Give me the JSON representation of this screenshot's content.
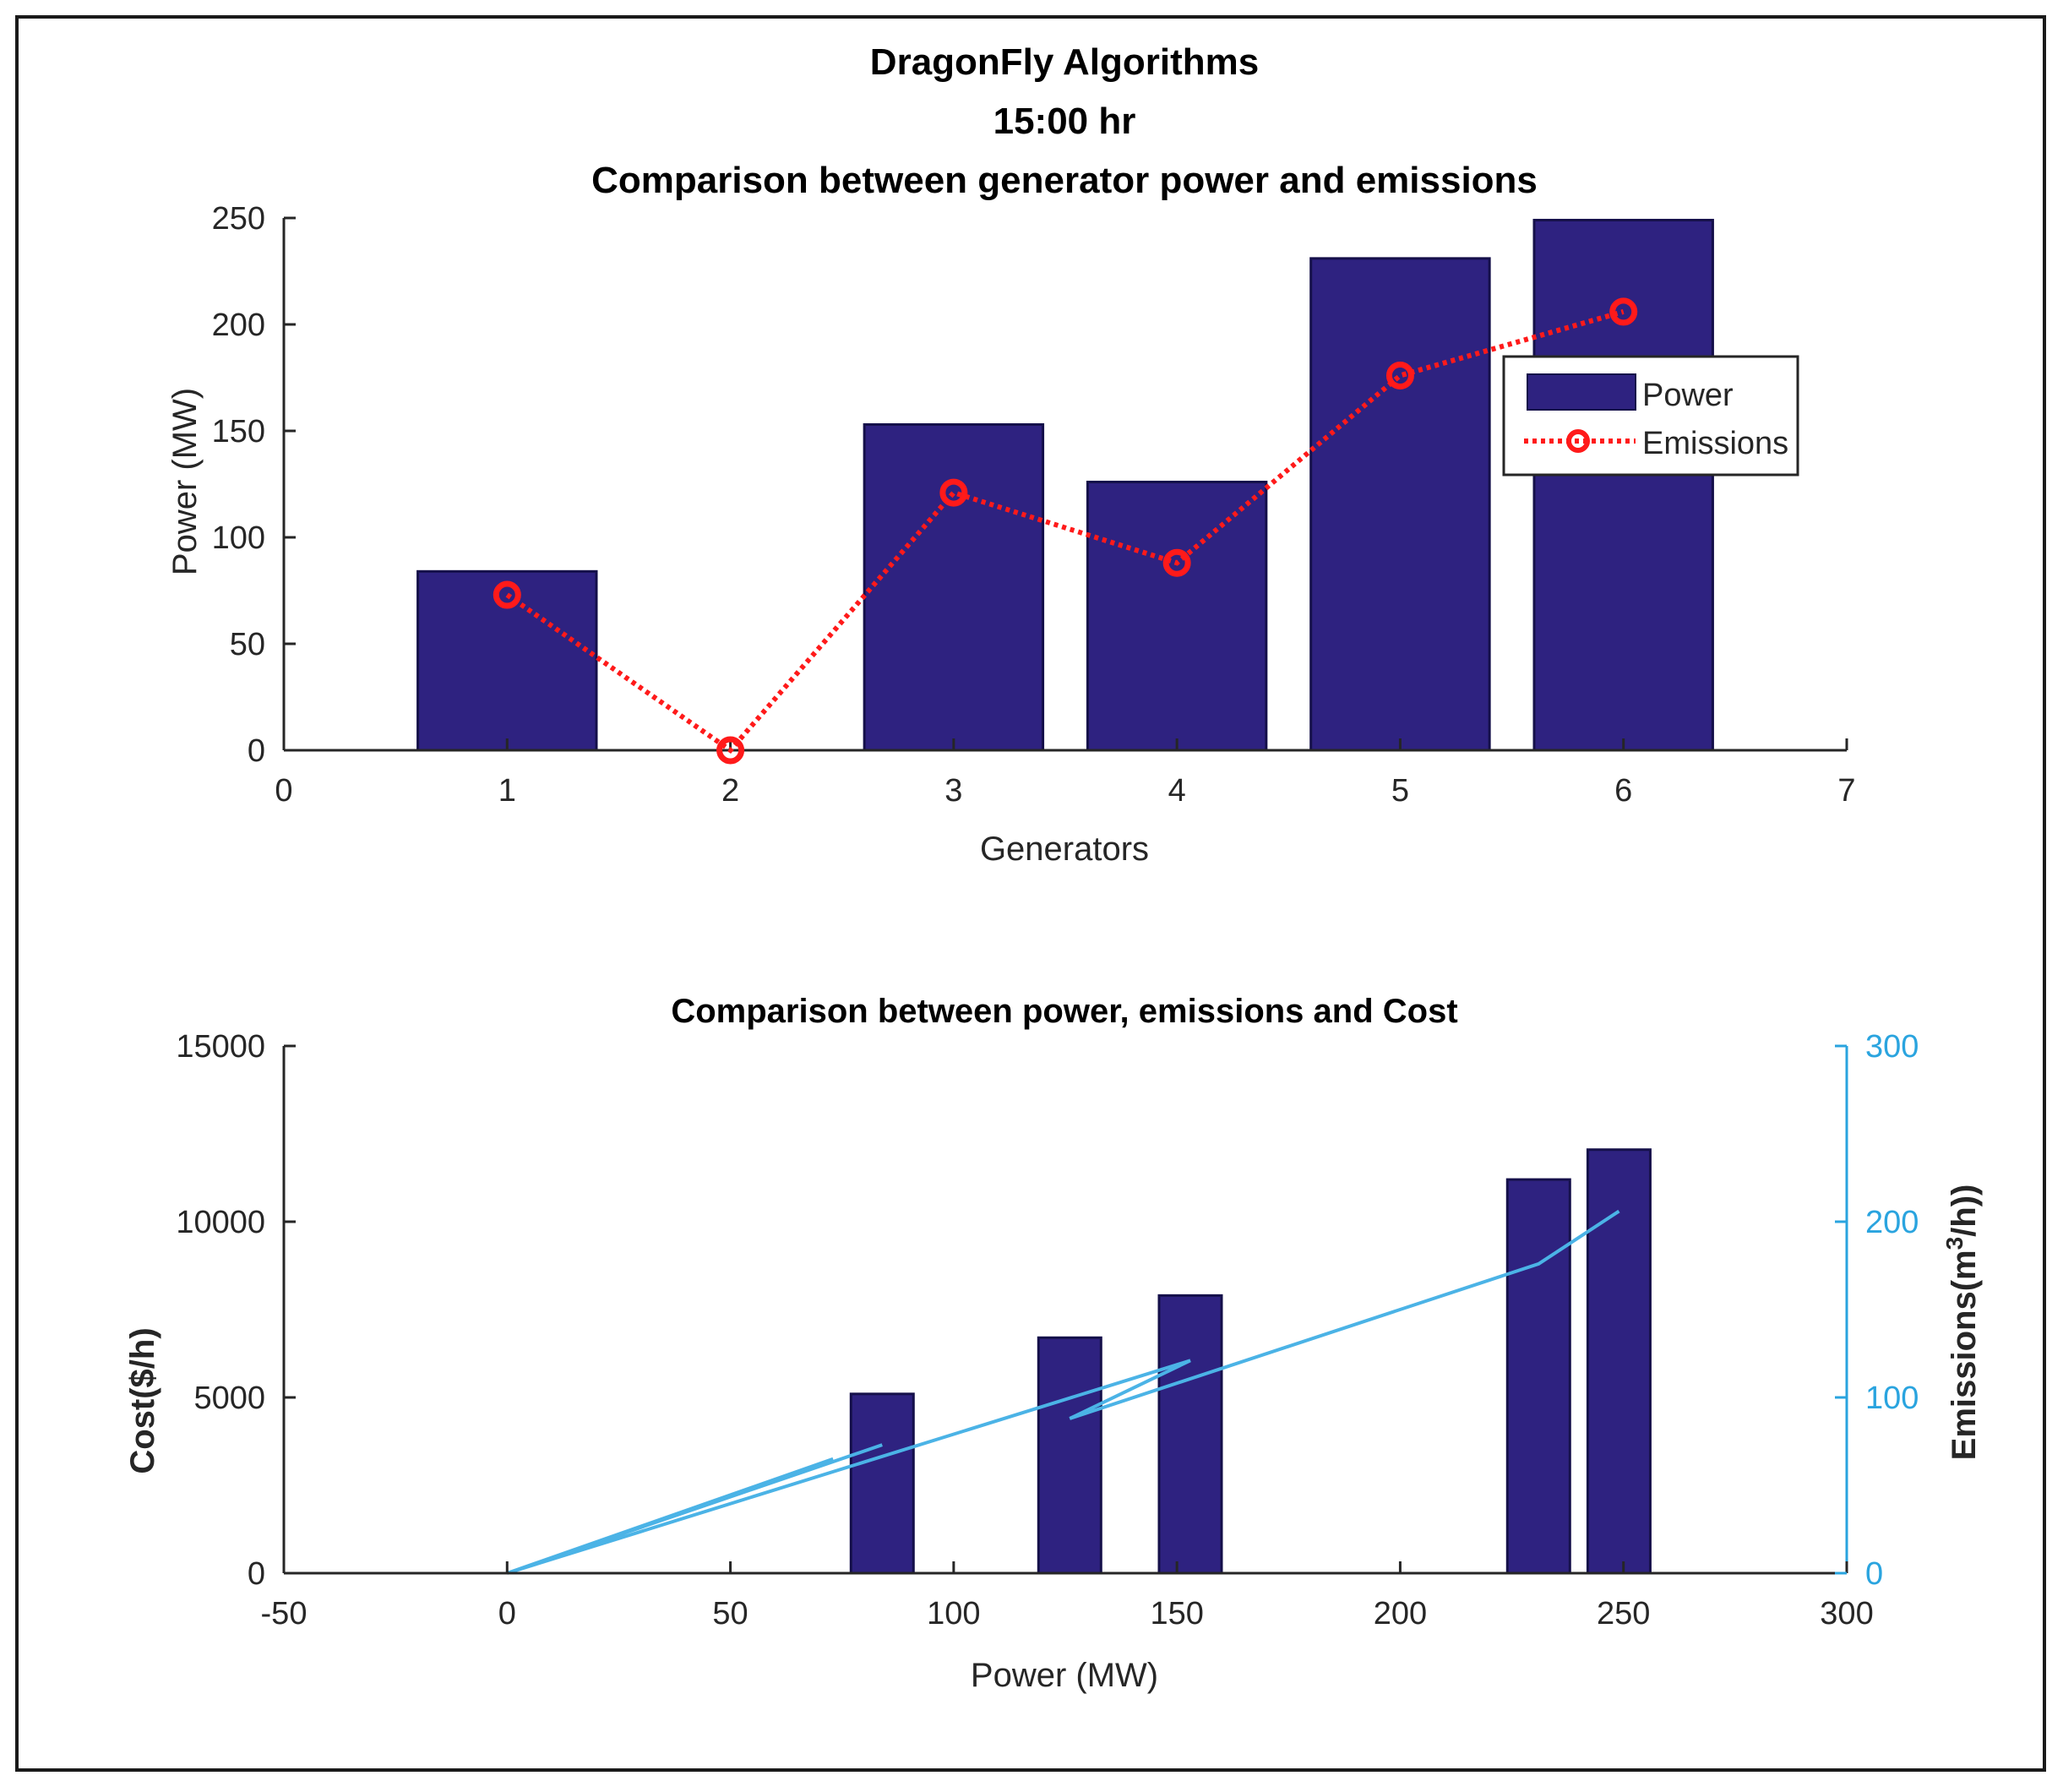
{
  "colors": {
    "bar": "#2e2280",
    "bar_edge": "#15104a",
    "emission_line": "#ff1a1a",
    "cost_line": "#4bb3e6",
    "right_axis": "#2aa4df",
    "axis": "#262626"
  },
  "chart_data": [
    {
      "type": "bar",
      "title_lines": [
        "DragonFly Algorithms",
        "15:00 hr",
        "Comparison between generator power and emissions"
      ],
      "xlabel": "Generators",
      "ylabel": "Power (MW)",
      "xlim": [
        0,
        7
      ],
      "ylim": [
        0,
        250
      ],
      "xticks": [
        "0",
        "1",
        "2",
        "3",
        "4",
        "5",
        "6",
        "7"
      ],
      "yticks": [
        "0",
        "50",
        "100",
        "150",
        "200",
        "250"
      ],
      "categories": [
        1,
        2,
        3,
        4,
        5,
        6
      ],
      "series": [
        {
          "name": "Power",
          "type": "bar",
          "values": [
            84,
            0,
            153,
            126,
            231,
            249
          ]
        },
        {
          "name": "Emissions",
          "type": "line",
          "style": "dotted-circle",
          "values": [
            73,
            0,
            121,
            88,
            176,
            206
          ]
        }
      ],
      "legend": {
        "position": "top-right",
        "entries": [
          "Power",
          "Emissions"
        ]
      }
    },
    {
      "type": "bar+line",
      "title": "Comparison between power, emissions and Cost",
      "xlabel": "Power (MW)",
      "ylabel_left": "Cost($/h)",
      "ylabel_right_prefix": "Emissions(m",
      "ylabel_right_sup": "3",
      "ylabel_right_suffix": "/h))",
      "xlim": [
        -50,
        300
      ],
      "ylim_left": [
        0,
        15000
      ],
      "ylim_right": [
        0,
        300
      ],
      "xticks": [
        "-50",
        "0",
        "50",
        "100",
        "150",
        "200",
        "250",
        "300"
      ],
      "yticks_left": [
        "0",
        "5000",
        "10000",
        "15000"
      ],
      "yticks_right": [
        "0",
        "100",
        "200",
        "300"
      ],
      "bars": {
        "name": "Cost",
        "x": [
          84,
          126,
          153,
          231,
          249
        ],
        "values": [
          5100,
          6700,
          7900,
          11200,
          12050
        ],
        "width": 14
      },
      "line": {
        "name": "Emissions",
        "x": [
          0,
          84,
          0,
          73,
          0,
          153,
          126,
          231,
          249
        ],
        "y": [
          0,
          73,
          0,
          65,
          0,
          121,
          88,
          176,
          206
        ]
      }
    }
  ]
}
